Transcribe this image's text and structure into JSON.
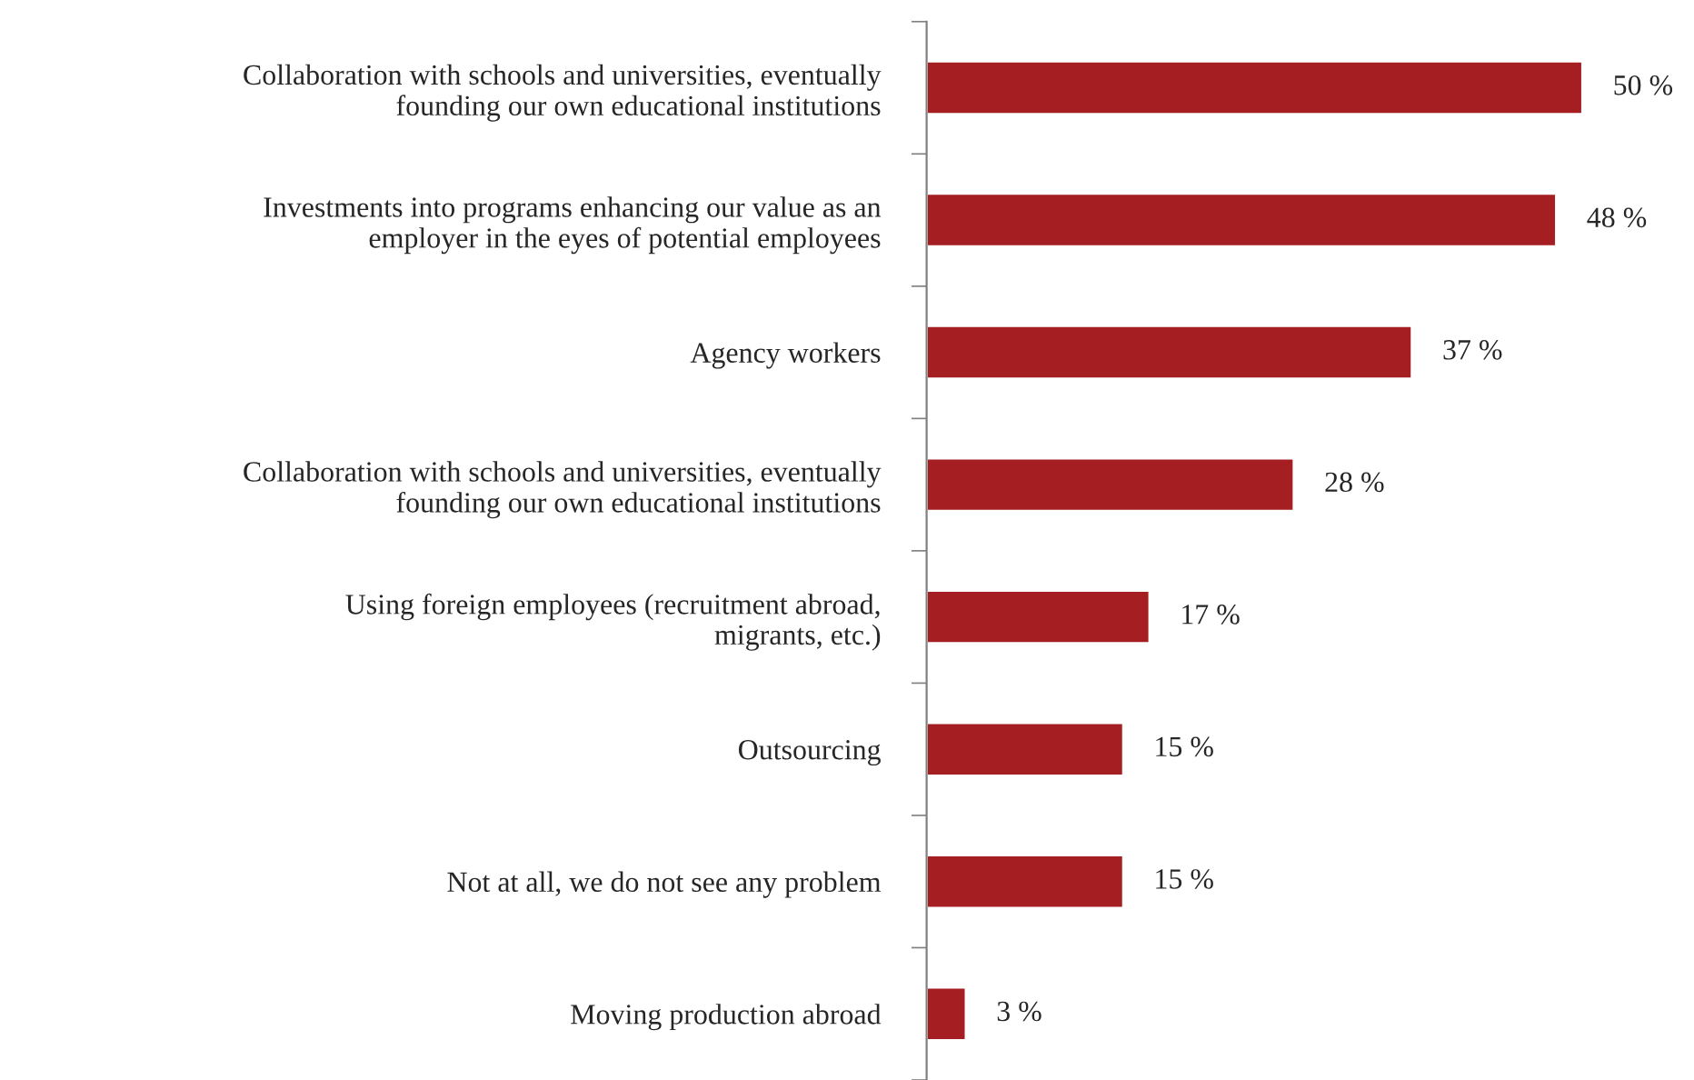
{
  "chart_data": {
    "type": "bar",
    "orientation": "horizontal",
    "categories": [
      "Collaboration with schools and universities, eventually\nfounding our own educational institutions",
      "Investments into programs enhancing our value as an\nemployer in the eyes of potential employees",
      "Agency workers",
      "Collaboration with schools and universities, eventually\nfounding our own educational institutions",
      "Using foreign employees (recruitment abroad,\nmigrants, etc.)",
      "Outsourcing",
      "Not at all, we do not see any problem",
      "Moving production abroad"
    ],
    "values": [
      50,
      48,
      37,
      28,
      17,
      15,
      15,
      3
    ],
    "value_labels": [
      "50 %",
      "48 %",
      "37 %",
      "28 %",
      "17 %",
      "15 %",
      "15 %",
      "3 %"
    ],
    "color": "#a51f22",
    "grid": false,
    "legend": false,
    "tick_labels": "y"
  }
}
